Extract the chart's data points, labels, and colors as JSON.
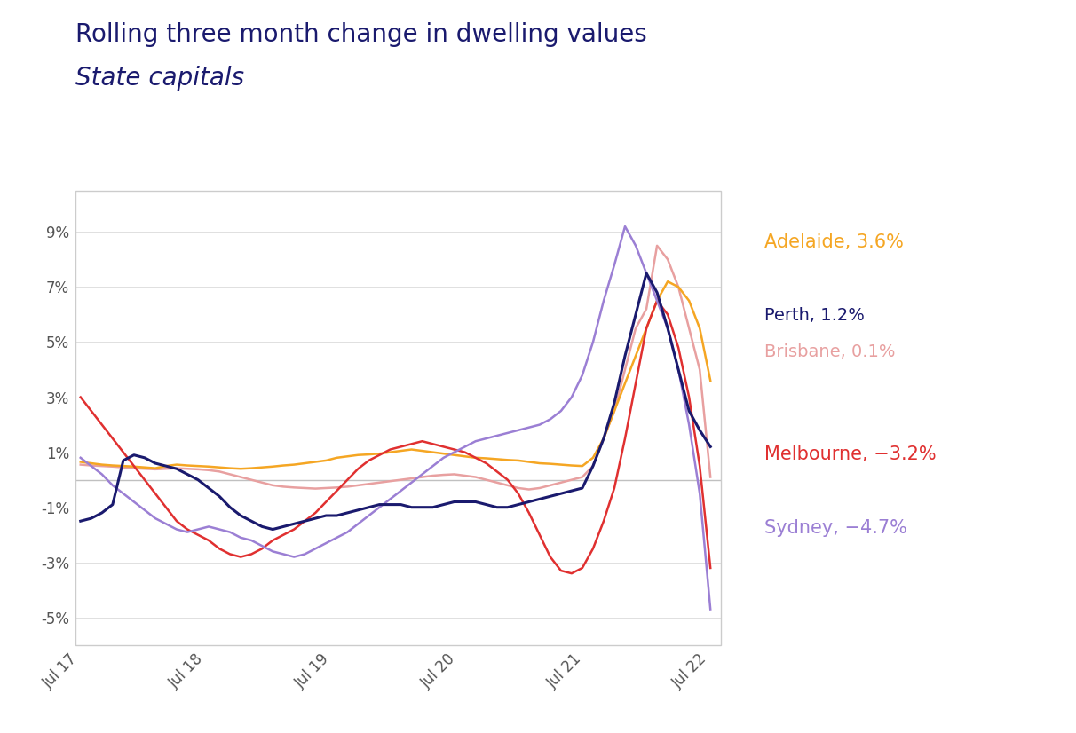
{
  "title_line1": "Rolling three month change in dwelling values",
  "title_line2": "State capitals",
  "title_color": "#1a1a6e",
  "subtitle_color": "#1a1a6e",
  "background_color": "#ffffff",
  "plot_bg_color": "#ffffff",
  "x_labels": [
    "Jul 17",
    "Jul 18",
    "Jul 19",
    "Jul 20",
    "Jul 21",
    "Jul 22"
  ],
  "ylim": [
    -6.0,
    10.5
  ],
  "yticks": [
    -5,
    -3,
    -1,
    1,
    3,
    5,
    7,
    9
  ],
  "zero_line_color": "#c0c0c0",
  "series": {
    "Adelaide": {
      "color": "#f5a623",
      "label": "Adelaide, 3.6%",
      "linewidth": 1.8,
      "values": [
        0.65,
        0.6,
        0.55,
        0.52,
        0.5,
        0.48,
        0.45,
        0.42,
        0.5,
        0.55,
        0.52,
        0.5,
        0.48,
        0.45,
        0.42,
        0.4,
        0.42,
        0.45,
        0.48,
        0.52,
        0.55,
        0.6,
        0.65,
        0.7,
        0.8,
        0.85,
        0.9,
        0.92,
        0.95,
        1.0,
        1.05,
        1.1,
        1.05,
        1.0,
        0.95,
        0.9,
        0.85,
        0.8,
        0.78,
        0.75,
        0.72,
        0.7,
        0.65,
        0.6,
        0.58,
        0.55,
        0.52,
        0.5,
        0.8,
        1.5,
        2.5,
        3.5,
        4.5,
        5.5,
        6.5,
        7.2,
        7.0,
        6.5,
        5.5,
        3.6
      ]
    },
    "Perth": {
      "color": "#1a1a6e",
      "label": "Perth, 1.2%",
      "linewidth": 2.2,
      "values": [
        -1.5,
        -1.4,
        -1.2,
        -0.9,
        0.7,
        0.9,
        0.8,
        0.6,
        0.5,
        0.4,
        0.2,
        0.0,
        -0.3,
        -0.6,
        -1.0,
        -1.3,
        -1.5,
        -1.7,
        -1.8,
        -1.7,
        -1.6,
        -1.5,
        -1.4,
        -1.3,
        -1.3,
        -1.2,
        -1.1,
        -1.0,
        -0.9,
        -0.9,
        -0.9,
        -1.0,
        -1.0,
        -1.0,
        -0.9,
        -0.8,
        -0.8,
        -0.8,
        -0.9,
        -1.0,
        -1.0,
        -0.9,
        -0.8,
        -0.7,
        -0.6,
        -0.5,
        -0.4,
        -0.3,
        0.5,
        1.5,
        2.8,
        4.5,
        6.0,
        7.5,
        6.8,
        5.5,
        4.0,
        2.5,
        1.8,
        1.2
      ]
    },
    "Brisbane": {
      "color": "#e8a0a0",
      "label": "Brisbane, 0.1%",
      "linewidth": 1.8,
      "values": [
        0.55,
        0.52,
        0.5,
        0.48,
        0.45,
        0.42,
        0.4,
        0.38,
        0.4,
        0.42,
        0.4,
        0.38,
        0.35,
        0.3,
        0.2,
        0.1,
        0.0,
        -0.1,
        -0.2,
        -0.25,
        -0.28,
        -0.3,
        -0.32,
        -0.3,
        -0.28,
        -0.25,
        -0.2,
        -0.15,
        -0.1,
        -0.05,
        0.0,
        0.05,
        0.1,
        0.15,
        0.18,
        0.2,
        0.15,
        0.1,
        0.0,
        -0.1,
        -0.2,
        -0.3,
        -0.35,
        -0.3,
        -0.2,
        -0.1,
        0.0,
        0.1,
        0.5,
        1.5,
        2.5,
        4.0,
        5.5,
        6.2,
        8.5,
        8.0,
        7.0,
        5.5,
        4.0,
        0.1
      ]
    },
    "Melbourne": {
      "color": "#e03030",
      "label": "Melbourne, -3.2%",
      "linewidth": 1.8,
      "values": [
        3.0,
        2.5,
        2.0,
        1.5,
        1.0,
        0.5,
        0.0,
        -0.5,
        -1.0,
        -1.5,
        -1.8,
        -2.0,
        -2.2,
        -2.5,
        -2.7,
        -2.8,
        -2.7,
        -2.5,
        -2.2,
        -2.0,
        -1.8,
        -1.5,
        -1.2,
        -0.8,
        -0.4,
        0.0,
        0.4,
        0.7,
        0.9,
        1.1,
        1.2,
        1.3,
        1.4,
        1.3,
        1.2,
        1.1,
        1.0,
        0.8,
        0.6,
        0.3,
        0.0,
        -0.5,
        -1.2,
        -2.0,
        -2.8,
        -3.3,
        -3.4,
        -3.2,
        -2.5,
        -1.5,
        -0.3,
        1.5,
        3.5,
        5.5,
        6.5,
        6.0,
        4.8,
        3.0,
        0.5,
        -3.2
      ]
    },
    "Sydney": {
      "color": "#9b7fd4",
      "label": "Sydney, -4.7%",
      "linewidth": 1.8,
      "values": [
        0.8,
        0.5,
        0.2,
        -0.2,
        -0.5,
        -0.8,
        -1.1,
        -1.4,
        -1.6,
        -1.8,
        -1.9,
        -1.8,
        -1.7,
        -1.8,
        -1.9,
        -2.1,
        -2.2,
        -2.4,
        -2.6,
        -2.7,
        -2.8,
        -2.7,
        -2.5,
        -2.3,
        -2.1,
        -1.9,
        -1.6,
        -1.3,
        -1.0,
        -0.7,
        -0.4,
        -0.1,
        0.2,
        0.5,
        0.8,
        1.0,
        1.2,
        1.4,
        1.5,
        1.6,
        1.7,
        1.8,
        1.9,
        2.0,
        2.2,
        2.5,
        3.0,
        3.8,
        5.0,
        6.5,
        7.8,
        9.2,
        8.5,
        7.5,
        6.5,
        5.5,
        4.0,
        2.0,
        -0.5,
        -4.7
      ]
    }
  },
  "legend_items": [
    {
      "label": "Adelaide, 3.6%",
      "color": "#f5a623"
    },
    {
      "label": "Perth, 1.2%",
      "color": "#1a1a6e"
    },
    {
      "label": "Brisbane, 0.1%",
      "color": "#e8a0a0"
    },
    {
      "label": "Melbourne, −3.2%",
      "color": "#e03030"
    },
    {
      "label": "Sydney, −4.7%",
      "color": "#9b7fd4"
    }
  ]
}
